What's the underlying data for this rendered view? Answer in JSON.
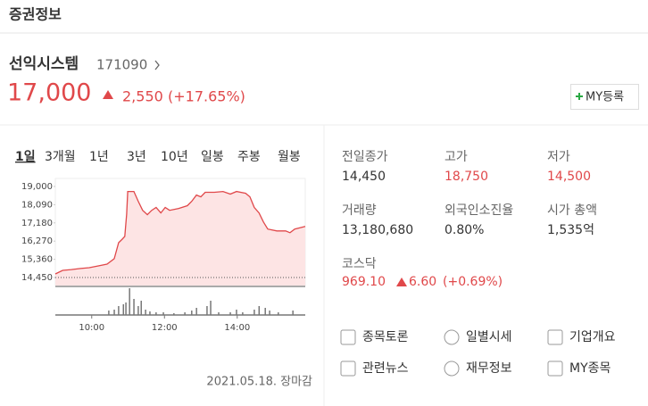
{
  "header": {
    "title": "증권정보"
  },
  "stock": {
    "name": "선익시스템",
    "code": "171090",
    "price": "17,000",
    "change": "2,550",
    "change_pct": "(+17.65%)",
    "my_button": "MY등록"
  },
  "tabs": [
    "1일",
    "3개월",
    "1년",
    "3년",
    "10년",
    "일봉",
    "주봉",
    "월봉"
  ],
  "chart_data": {
    "type": "line",
    "x": [
      9.0,
      9.2,
      9.44,
      9.69,
      9.93,
      10.18,
      10.42,
      10.62,
      10.74,
      10.84,
      10.91,
      10.96,
      10.99,
      11.16,
      11.28,
      11.4,
      11.53,
      11.65,
      11.77,
      11.9,
      12.02,
      12.14,
      12.39,
      12.63,
      12.75,
      12.88,
      13.0,
      13.12,
      13.37,
      13.61,
      13.81,
      13.98,
      14.23,
      14.35,
      14.47,
      14.6,
      14.72,
      14.84,
      15.09,
      15.33,
      15.45,
      15.58,
      15.87
    ],
    "values": [
      14630,
      14810,
      14850,
      14900,
      14940,
      15030,
      15120,
      15390,
      16190,
      16370,
      16500,
      17620,
      18750,
      18750,
      18260,
      17810,
      17590,
      17810,
      17950,
      17680,
      17950,
      17810,
      17900,
      18040,
      18260,
      18570,
      18480,
      18710,
      18710,
      18750,
      18620,
      18750,
      18660,
      18480,
      17950,
      17680,
      17230,
      16870,
      16780,
      16780,
      16690,
      16870,
      17000
    ],
    "color": "#e0484a",
    "fill": "#fde4e4",
    "xlim": [
      9,
      15.87
    ],
    "ylim": [
      14050,
      19400
    ],
    "xticks": [
      {
        "value": 10,
        "label": "10:00"
      },
      {
        "value": 12,
        "label": "12:00"
      },
      {
        "value": 14,
        "label": "14:00"
      }
    ],
    "yticks": [
      {
        "value": 19000,
        "label": "19,000"
      },
      {
        "value": 18090,
        "label": "18,090"
      },
      {
        "value": 17180,
        "label": "17,180"
      },
      {
        "value": 16270,
        "label": "16,270"
      },
      {
        "value": 15360,
        "label": "15,360"
      },
      {
        "value": 14450,
        "label": "14,450"
      }
    ],
    "reference_line": 14450,
    "volume_x": [
      10.47,
      10.62,
      10.74,
      10.87,
      10.94,
      11.04,
      11.16,
      11.28,
      11.36,
      11.48,
      11.6,
      11.77,
      11.97,
      12.26,
      12.56,
      12.75,
      12.88,
      13.17,
      13.27,
      13.49,
      13.81,
      13.98,
      14.15,
      14.47,
      14.6,
      14.77,
      14.89,
      15.13,
      15.53
    ],
    "volume_values": [
      5,
      6,
      10,
      12,
      14,
      30,
      18,
      10,
      16,
      6,
      4,
      3,
      3,
      2,
      3,
      5,
      8,
      10,
      16,
      3,
      3,
      6,
      3,
      6,
      10,
      8,
      5,
      3,
      5
    ],
    "volume_ylim": [
      0,
      30
    ],
    "volume_color": "#555555"
  },
  "stats": [
    {
      "label": "전일종가",
      "value": "14,450",
      "color": "#333333"
    },
    {
      "label": "고가",
      "value": "18,750",
      "color": "#e0484a"
    },
    {
      "label": "저가",
      "value": "14,500",
      "color": "#e0484a"
    },
    {
      "label": "거래량",
      "value": "13,180,680",
      "color": "#333333"
    },
    {
      "label": "외국인소진율",
      "value": "0.80%",
      "color": "#333333"
    },
    {
      "label": "시가 총액",
      "value": "1,535억",
      "color": "#333333"
    }
  ],
  "index": {
    "label": "코스닥",
    "value": "969.10",
    "change": "6.60",
    "change_pct": "(+0.69%)"
  },
  "links": [
    "종목토론",
    "일별시세",
    "기업개요",
    "관련뉴스",
    "재무정보",
    "MY종목"
  ],
  "footer": "2021.05.18. 장마감"
}
